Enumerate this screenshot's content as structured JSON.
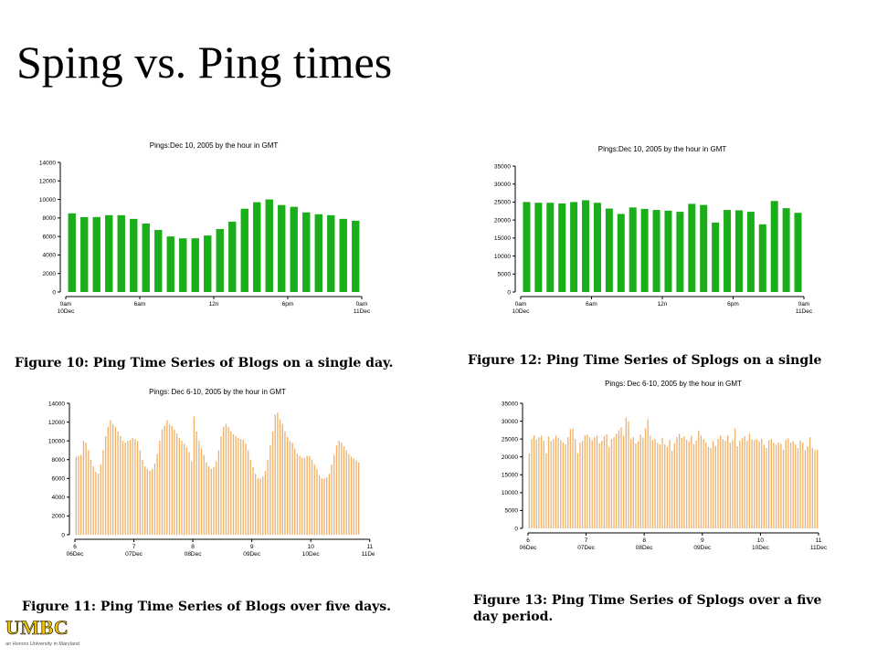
{
  "slide": {
    "title": "Sping vs. Ping times"
  },
  "captions": {
    "fig10": "Figure 10: Ping Time Series of Blogs on a single day.",
    "fig12": "Figure 12: Ping Time Series of Splogs on a single",
    "fig11": "Figure 11: Ping Time Series of Blogs over five days.",
    "fig13_line1": "Figure 13: Ping Time Series of Splogs over a five",
    "fig13_line2": "day period."
  },
  "logo": {
    "text": "UMBC",
    "tagline": "an Honors University in Maryland",
    "color": "#f2c400"
  },
  "chart_data": [
    {
      "type": "bar",
      "title": "Pings:Dec 10, 2005 by the hour in GMT",
      "color": "#1aae1a",
      "ylim": [
        0,
        14000
      ],
      "yticks": [
        0,
        2000,
        4000,
        6000,
        8000,
        10000,
        12000,
        14000
      ],
      "xticks": [
        {
          "index": 0,
          "l1": "0am",
          "l2": "10Dec"
        },
        {
          "index": 6,
          "l1": "6am",
          "l2": ""
        },
        {
          "index": 12,
          "l1": "12n",
          "l2": ""
        },
        {
          "index": 18,
          "l1": "6pm",
          "l2": ""
        },
        {
          "index": 24,
          "l1": "0am",
          "l2": "11Dec"
        }
      ],
      "values": [
        8500,
        8100,
        8100,
        8300,
        8300,
        7900,
        7400,
        6700,
        6000,
        5800,
        5800,
        6100,
        6800,
        7600,
        9000,
        9700,
        10000,
        9400,
        9200,
        8600,
        8400,
        8300,
        7900,
        7700
      ]
    },
    {
      "type": "bar",
      "title": "Pings:Dec 10, 2005 by the hour in GMT",
      "color": "#1aae1a",
      "ylim": [
        0,
        35000
      ],
      "yticks": [
        0,
        5000,
        10000,
        15000,
        20000,
        25000,
        30000,
        35000
      ],
      "xticks": [
        {
          "index": 0,
          "l1": "0am",
          "l2": "10Dec"
        },
        {
          "index": 6,
          "l1": "6am",
          "l2": ""
        },
        {
          "index": 12,
          "l1": "12n",
          "l2": ""
        },
        {
          "index": 18,
          "l1": "6pm",
          "l2": ""
        },
        {
          "index": 24,
          "l1": "0am",
          "l2": "11Dec"
        }
      ],
      "values": [
        25000,
        24800,
        24800,
        24600,
        25000,
        25500,
        24800,
        23200,
        21700,
        23500,
        23100,
        22800,
        22600,
        22300,
        24500,
        24200,
        19300,
        22800,
        22700,
        22300,
        18800,
        25300,
        23300,
        22000
      ]
    },
    {
      "type": "bar",
      "title": "Pings: Dec 6-10, 2005 by the hour in GMT",
      "color": "#f0b26a",
      "ylim": [
        0,
        14000
      ],
      "yticks": [
        0,
        2000,
        4000,
        6000,
        8000,
        10000,
        12000,
        14000
      ],
      "xticks": [
        {
          "index": 0,
          "l1": "6",
          "l2": "06Dec"
        },
        {
          "index": 24,
          "l1": "7",
          "l2": "07Dec"
        },
        {
          "index": 48,
          "l1": "8",
          "l2": "08Dec"
        },
        {
          "index": 72,
          "l1": "9",
          "l2": "09Dec"
        },
        {
          "index": 96,
          "l1": "10",
          "l2": "10Dec"
        },
        {
          "index": 120,
          "l1": "11",
          "l2": "11Dec"
        }
      ],
      "values": [
        8300,
        8400,
        8500,
        10000,
        9800,
        9000,
        8000,
        7300,
        6700,
        6500,
        7500,
        9000,
        10500,
        11500,
        12200,
        11800,
        11500,
        11000,
        10500,
        10000,
        9800,
        10000,
        10100,
        10300,
        10200,
        10000,
        9000,
        8000,
        7300,
        7000,
        6800,
        7000,
        7600,
        8600,
        10000,
        11200,
        11600,
        12200,
        11800,
        11600,
        11200,
        10800,
        10300,
        10000,
        9700,
        9300,
        8800,
        7800,
        12600,
        11000,
        10000,
        9200,
        8500,
        7700,
        7300,
        7000,
        7200,
        7800,
        9000,
        10500,
        11500,
        11800,
        11500,
        11000,
        10700,
        10500,
        10300,
        10200,
        10100,
        9700,
        9000,
        8000,
        7200,
        6500,
        6000,
        6000,
        6200,
        6800,
        8000,
        9500,
        11000,
        12800,
        13000,
        12300,
        11800,
        11000,
        10400,
        10000,
        9800,
        9200,
        8600,
        8400,
        8200,
        8200,
        8400,
        8400,
        8000,
        7500,
        7000,
        6300,
        6000,
        6000,
        6100,
        6500,
        7500,
        8500,
        9500,
        10000,
        9800,
        9400,
        9000,
        8600,
        8300,
        8100,
        7900,
        7700
      ]
    },
    {
      "type": "bar",
      "title": "Pings: Dec 6-10, 2005 by the hour in GMT",
      "color": "#f0b26a",
      "ylim": [
        0,
        35000
      ],
      "yticks": [
        0,
        5000,
        10000,
        15000,
        20000,
        25000,
        30000,
        35000
      ],
      "xticks": [
        {
          "index": 0,
          "l1": "6",
          "l2": "06Dec"
        },
        {
          "index": 24,
          "l1": "7",
          "l2": "07Dec"
        },
        {
          "index": 48,
          "l1": "8",
          "l2": "08Dec"
        },
        {
          "index": 72,
          "l1": "9",
          "l2": "09Dec"
        },
        {
          "index": 96,
          "l1": "10",
          "l2": "10Dec"
        },
        {
          "index": 120,
          "l1": "11",
          "l2": "11Dec"
        }
      ],
      "values": [
        21000,
        25000,
        26000,
        24800,
        25500,
        26000,
        24500,
        21000,
        25700,
        24500,
        25000,
        26000,
        25300,
        24800,
        24000,
        23500,
        25500,
        27800,
        28000,
        25000,
        21000,
        24000,
        24500,
        26000,
        26200,
        25400,
        24700,
        25500,
        26000,
        23800,
        24500,
        25800,
        26300,
        22800,
        25000,
        25500,
        26500,
        27500,
        28300,
        26000,
        31000,
        30000,
        25000,
        25500,
        23800,
        24300,
        26200,
        25400,
        28000,
        30500,
        26000,
        24700,
        25000,
        23900,
        23500,
        25300,
        23500,
        22800,
        24700,
        21700,
        23800,
        25500,
        26500,
        25300,
        25800,
        24800,
        24300,
        25900,
        23600,
        24500,
        27400,
        26000,
        25000,
        24000,
        22900,
        22500,
        24400,
        23100,
        25000,
        26000,
        25000,
        24500,
        26000,
        24000,
        24700,
        28000,
        23000,
        24500,
        25200,
        25800,
        24500,
        26500,
        24900,
        24700,
        25000,
        24400,
        25000,
        23400,
        22500,
        24700,
        25000,
        23900,
        23500,
        24000,
        23700,
        22000,
        24800,
        25200,
        24000,
        24400,
        23500,
        22500,
        24600,
        24000,
        21800,
        23000,
        25500,
        22500,
        21900,
        22000
      ]
    }
  ]
}
